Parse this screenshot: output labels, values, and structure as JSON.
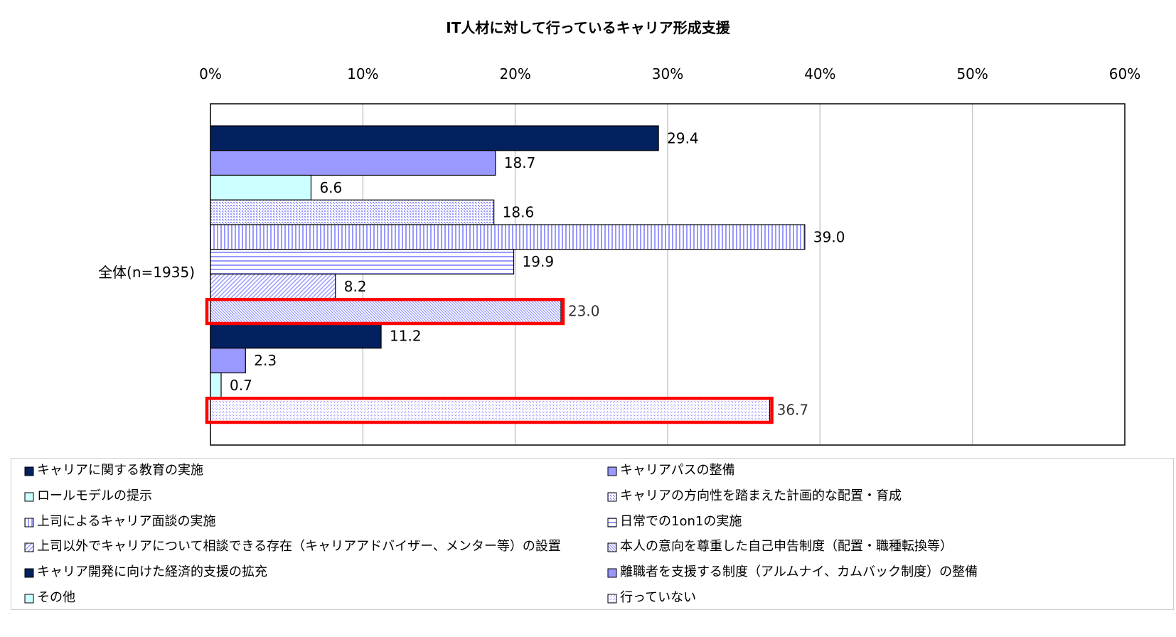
{
  "chart_data": {
    "type": "bar",
    "orientation": "horizontal",
    "title": "IT人材に対して行っているキャリア形成支援",
    "categories": [
      "全体(n=1935)"
    ],
    "xlim": [
      0,
      60
    ],
    "xticks": [
      "0%",
      "10%",
      "20%",
      "30%",
      "40%",
      "50%",
      "60%"
    ],
    "grid": true,
    "legend_position": "bottom",
    "series": [
      {
        "name": "キャリアに関する教育の実施",
        "values": [
          29.4
        ],
        "label": "29.4",
        "color": "#03215f",
        "pattern": "solid"
      },
      {
        "name": "キャリアパスの整備",
        "values": [
          18.7
        ],
        "label": "18.7",
        "color": "#9999ff",
        "pattern": "solid"
      },
      {
        "name": "ロールモデルの提示",
        "values": [
          6.6
        ],
        "label": "6.6",
        "color": "#ccffff",
        "pattern": "solid"
      },
      {
        "name": "キャリアの方向性を踏まえた計画的な配置・育成",
        "values": [
          18.6
        ],
        "label": "18.6",
        "color": "#9999ff",
        "pattern": "dots"
      },
      {
        "name": "上司によるキャリア面談の実施",
        "values": [
          39.0
        ],
        "label": "39.0",
        "color": "#9999ff",
        "pattern": "vertical"
      },
      {
        "name": "日常での1on1の実施",
        "values": [
          19.9
        ],
        "label": "19.9",
        "color": "#9999ff",
        "pattern": "horizontal"
      },
      {
        "name": "上司以外でキャリアについて相談できる存在（キャリアアドバイザー、メンター等）の設置",
        "values": [
          8.2
        ],
        "label": "8.2",
        "color": "#9999ff",
        "pattern": "diag-up"
      },
      {
        "name": "本人の意向を尊重した自己申告制度（配置・職種転換等）",
        "values": [
          23.0
        ],
        "label": "23.0",
        "color": "#9999ff",
        "pattern": "diag-down",
        "highlighted": true
      },
      {
        "name": "キャリア開発に向けた経済的支援の拡充",
        "values": [
          11.2
        ],
        "label": "11.2",
        "color": "#03215f",
        "pattern": "solid"
      },
      {
        "name": "離職者を支援する制度（アルムナイ、カムバック制度）の整備",
        "values": [
          2.3
        ],
        "label": "2.3",
        "color": "#9999ff",
        "pattern": "solid"
      },
      {
        "name": "その他",
        "values": [
          0.7
        ],
        "label": "0.7",
        "color": "#ccffff",
        "pattern": "solid"
      },
      {
        "name": "行っていない",
        "values": [
          36.7
        ],
        "label": "36.7",
        "color": "#9999ff",
        "pattern": "dots2",
        "highlighted": true
      }
    ],
    "highlight_color": "#ff0000"
  }
}
